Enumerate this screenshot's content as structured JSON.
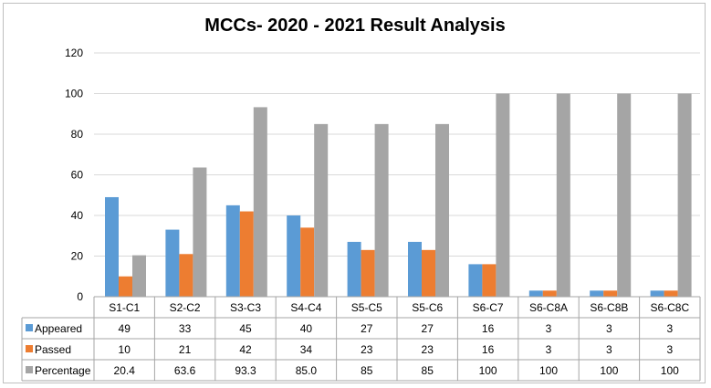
{
  "chart_data": {
    "type": "bar",
    "title": "MCCs- 2020 - 2021 Result Analysis",
    "xlabel": "",
    "ylabel": "",
    "ylim": [
      0,
      120
    ],
    "yticks": [
      "0",
      "20",
      "40",
      "60",
      "80",
      "100",
      "120"
    ],
    "grid": true,
    "legend": "data-table-bottom",
    "categories": [
      "S1-C1",
      "S2-C2",
      "S3-C3",
      "S4-C4",
      "S5-C5",
      "S5-C6",
      "S6-C7",
      "S6-C8A",
      "S6-C8B",
      "S6-C8C"
    ],
    "series": [
      {
        "name": "Appeared",
        "color": "#5b9bd5",
        "values": [
          49,
          33,
          45,
          40,
          27,
          27,
          16,
          3,
          3,
          3
        ],
        "labels": [
          "49",
          "33",
          "45",
          "40",
          "27",
          "27",
          "16",
          "3",
          "3",
          "3"
        ]
      },
      {
        "name": "Passed",
        "color": "#ed7d31",
        "values": [
          10,
          21,
          42,
          34,
          23,
          23,
          16,
          3,
          3,
          3
        ],
        "labels": [
          "10",
          "21",
          "42",
          "34",
          "23",
          "23",
          "16",
          "3",
          "3",
          "3"
        ]
      },
      {
        "name": "Percentage",
        "color": "#a5a5a5",
        "values": [
          20.4,
          63.6,
          93.3,
          85.0,
          85,
          85,
          100,
          100,
          100,
          100
        ],
        "labels": [
          "20.4",
          "63.6",
          "93.3",
          "85.0",
          "85",
          "85",
          "100",
          "100",
          "100",
          "100"
        ]
      }
    ]
  }
}
